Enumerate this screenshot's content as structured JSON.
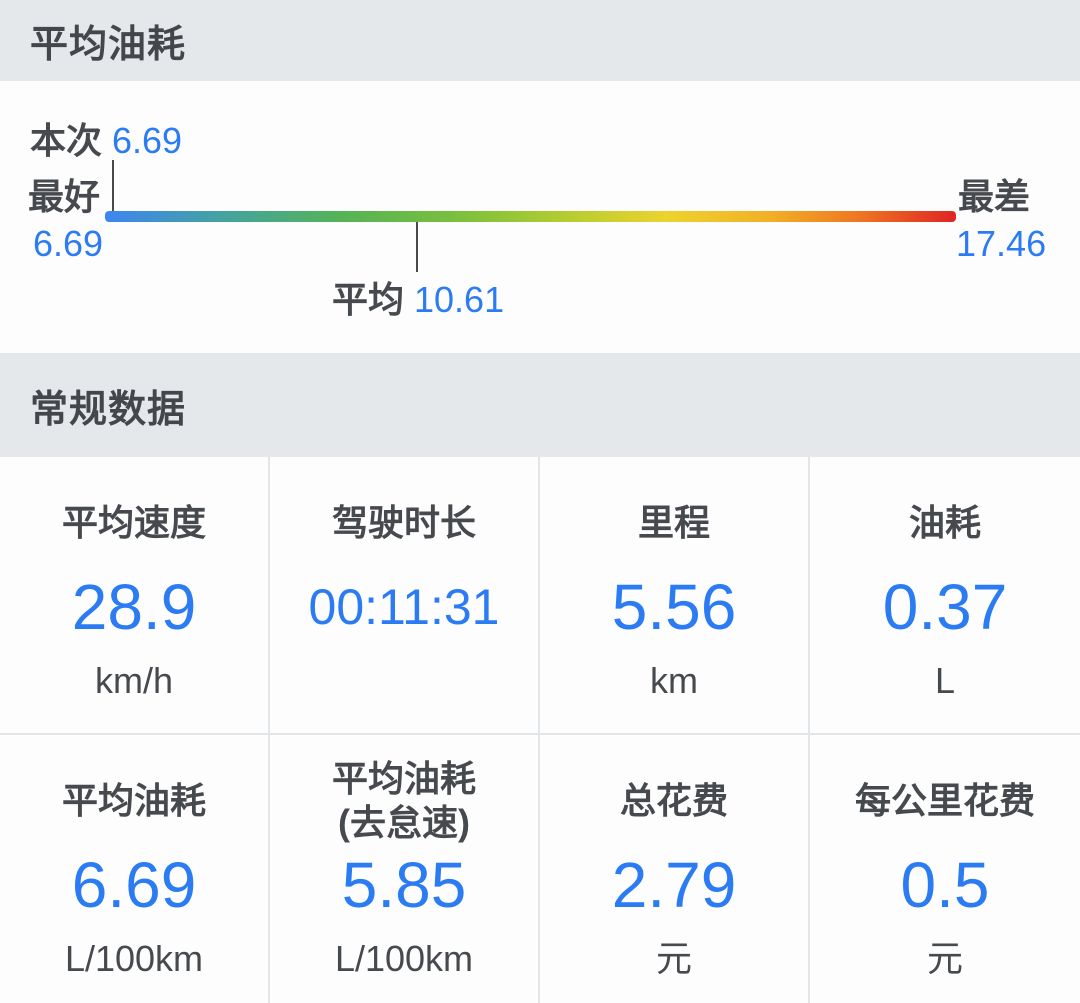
{
  "fuel": {
    "title": "平均油耗",
    "gauge": {
      "current_label": "本次",
      "current_value": "6.69",
      "best_label": "最好",
      "best_value": "6.69",
      "worst_label": "最差",
      "worst_value": "17.46",
      "average_label": "平均",
      "average_value": "10.61",
      "scale_min": 6.69,
      "scale_max": 17.46
    }
  },
  "general": {
    "title": "常规数据",
    "cells": [
      {
        "label": "平均速度",
        "value": "28.9",
        "unit": "km/h"
      },
      {
        "label": "驾驶时长",
        "value": "00:11:31",
        "unit": ""
      },
      {
        "label": "里程",
        "value": "5.56",
        "unit": "km"
      },
      {
        "label": "油耗",
        "value": "0.37",
        "unit": "L"
      },
      {
        "label": "平均油耗",
        "value": "6.69",
        "unit": "L/100km"
      },
      {
        "label": "平均油耗",
        "label2": "(去怠速)",
        "value": "5.85",
        "unit": "L/100km"
      },
      {
        "label": "总花费",
        "value": "2.79",
        "unit": "元"
      },
      {
        "label": "每公里花费",
        "value": "0.5",
        "unit": "元"
      }
    ]
  },
  "colors": {
    "accent_blue": "#2b7bf3",
    "label_gray": "#46494d",
    "header_band": "#e5e8eb",
    "divider": "#e3e6e9",
    "gradient_start_blue": "#3e85f2",
    "gradient_mid_green": "#7dc03c",
    "gradient_mid_yellow": "#edd32e",
    "gradient_end_red": "#e02424"
  }
}
